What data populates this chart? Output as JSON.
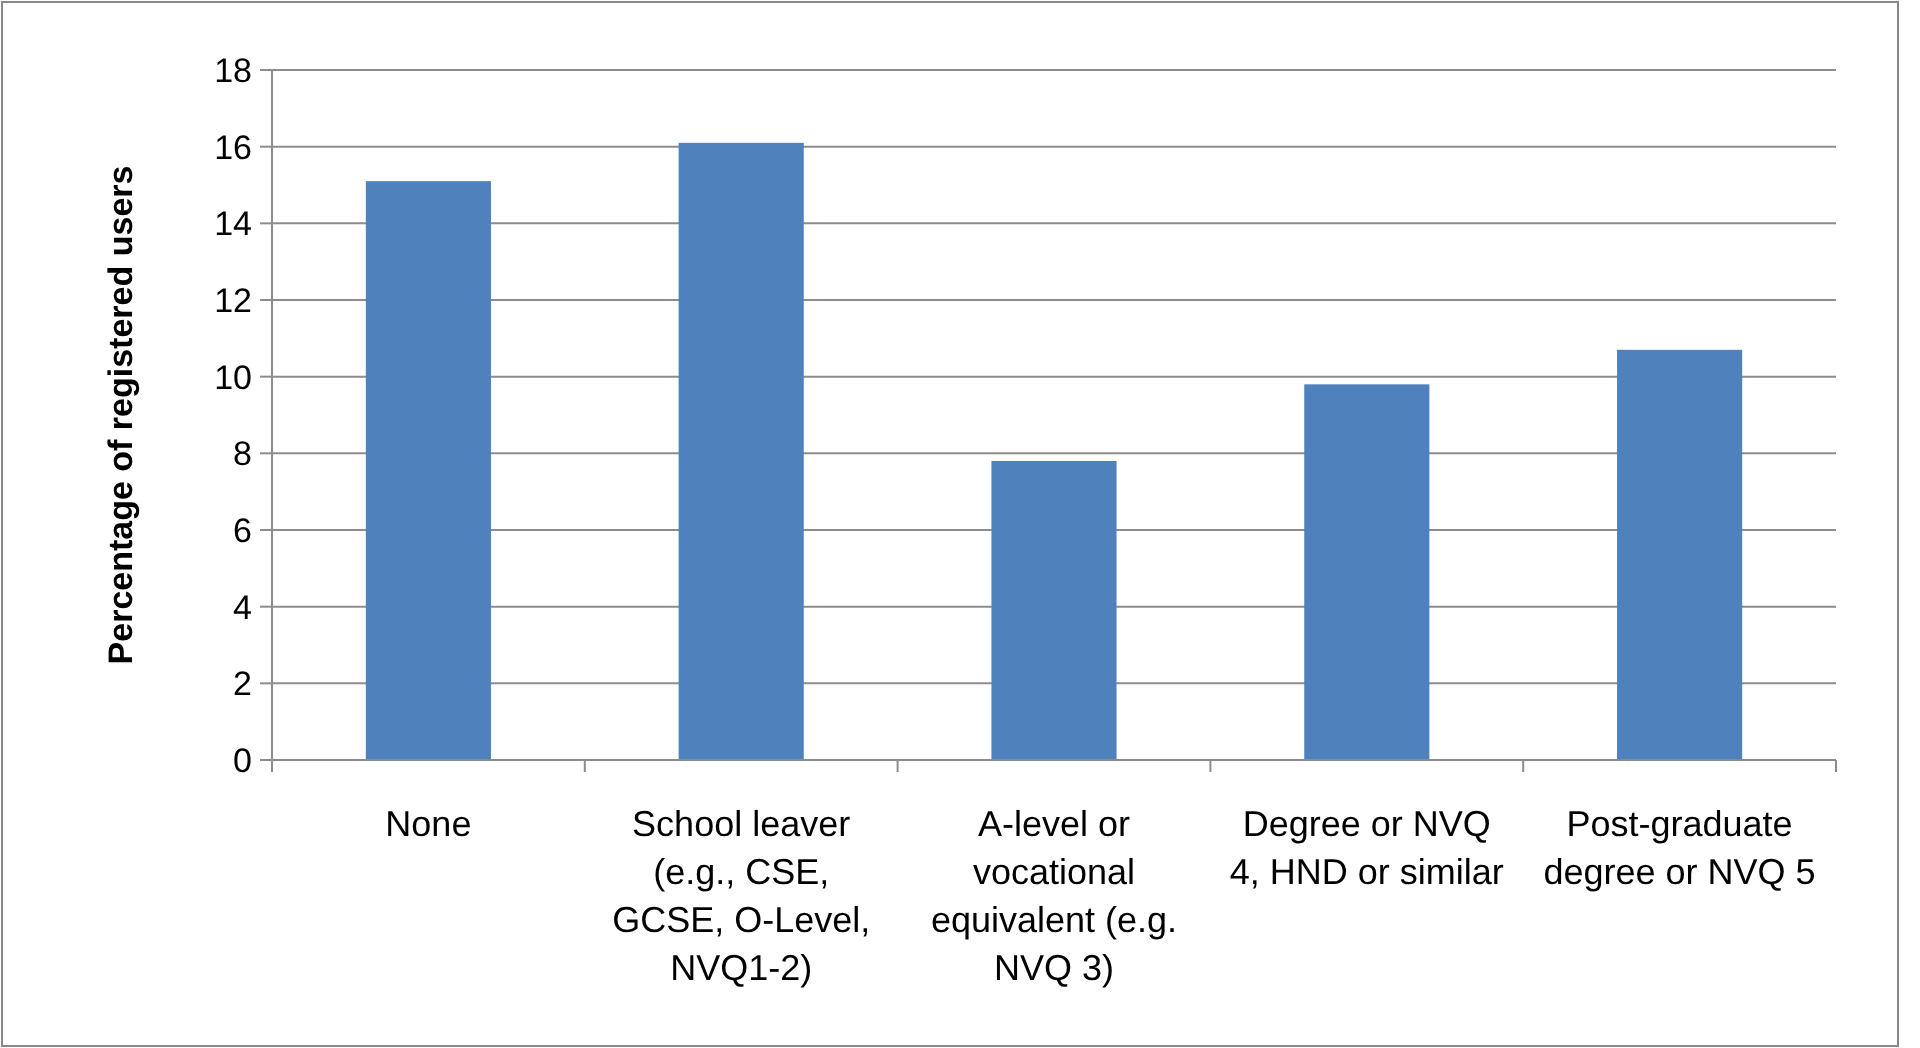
{
  "chart_data": {
    "type": "bar",
    "ylabel": "Percentage of registered users",
    "categories": [
      "None",
      "School leaver (e.g., CSE, GCSE, O-Level, NVQ1-2)",
      "A-level or vocational equivalent (e.g. NVQ 3)",
      "Degree or NVQ 4, HND or similar",
      "Post-graduate degree or NVQ 5"
    ],
    "values": [
      15.1,
      16.1,
      7.8,
      9.8,
      10.7
    ],
    "color": "#4f81bd",
    "ylim": [
      0,
      18
    ],
    "yticks": [
      0,
      2,
      4,
      6,
      8,
      10,
      12,
      14,
      16,
      18
    ],
    "grid": "y"
  }
}
